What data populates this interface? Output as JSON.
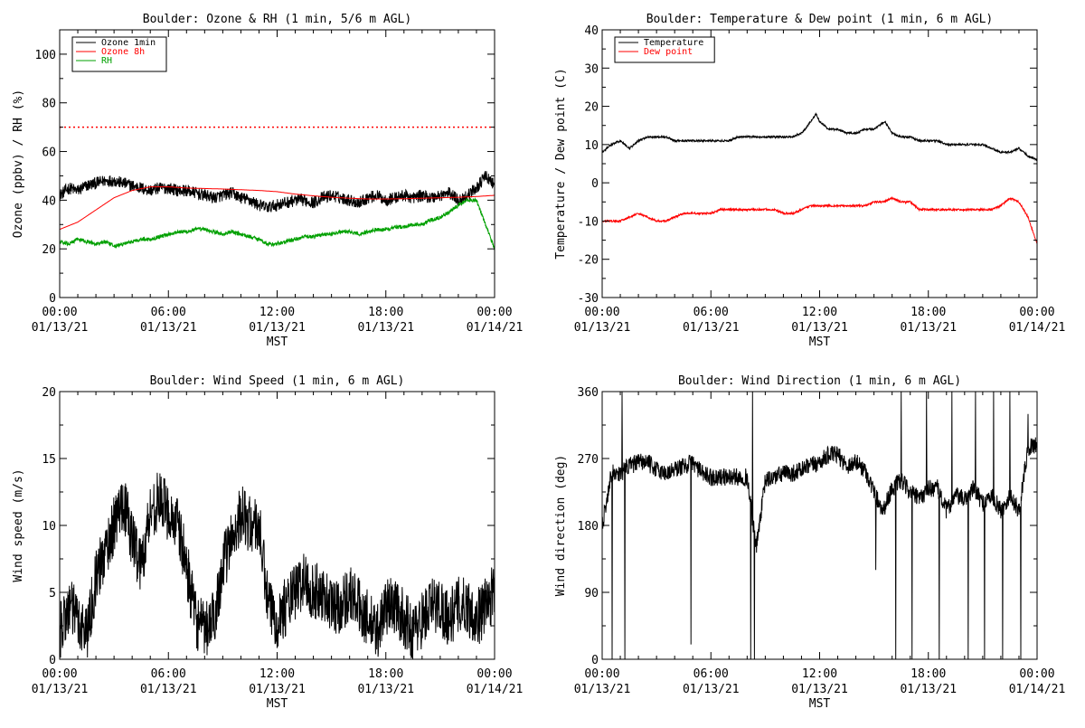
{
  "chart_data": [
    {
      "type": "line",
      "title": "Boulder: Ozone & RH (1 min, 5/6 m AGL)",
      "xlabel": "MST",
      "ylabel": "Ozone (ppbv) / RH (%)",
      "xlim": [
        0,
        24
      ],
      "ylim": [
        0,
        110
      ],
      "x_ticks": [
        {
          "value": 0,
          "time": "00:00",
          "date": "01/13/21"
        },
        {
          "value": 6,
          "time": "06:00",
          "date": "01/13/21"
        },
        {
          "value": 12,
          "time": "12:00",
          "date": "01/13/21"
        },
        {
          "value": 18,
          "time": "18:00",
          "date": "01/13/21"
        },
        {
          "value": 24,
          "time": "00:00",
          "date": "01/14/21"
        }
      ],
      "y_ticks": [
        0,
        20,
        40,
        60,
        80,
        100
      ],
      "grid": false,
      "legend": "top-left",
      "reference_line": {
        "y": 70,
        "color": "#ff0000",
        "style": "dotted"
      },
      "series": [
        {
          "name": "Ozone 1min",
          "color": "#000000",
          "noise": 2.5,
          "x": [
            0,
            0.5,
            1,
            1.5,
            2,
            2.5,
            3,
            3.5,
            4,
            4.5,
            5,
            5.5,
            6,
            6.5,
            7,
            7.5,
            8,
            8.5,
            9,
            9.5,
            10,
            10.5,
            11,
            11.5,
            12,
            12.5,
            13,
            13.5,
            14,
            14.5,
            15,
            15.5,
            16,
            16.5,
            17,
            17.5,
            18,
            18.5,
            19,
            19.5,
            20,
            20.5,
            21,
            21.5,
            22,
            22.5,
            23,
            23.5,
            24
          ],
          "y": [
            42,
            45,
            44,
            46,
            47,
            48,
            48,
            47,
            46,
            45,
            44,
            45,
            45,
            44,
            44,
            43,
            42,
            41,
            42,
            43,
            41,
            40,
            38,
            37,
            38,
            39,
            40,
            40,
            39,
            41,
            42,
            41,
            40,
            39,
            41,
            42,
            40,
            41,
            42,
            41,
            42,
            41,
            42,
            43,
            40,
            42,
            45,
            50,
            46
          ]
        },
        {
          "name": "Ozone 8h",
          "color": "#ff0000",
          "noise": 0,
          "x": [
            0,
            1,
            2,
            3,
            4,
            5,
            6,
            7,
            8,
            9,
            10,
            11,
            12,
            13,
            14,
            15,
            16,
            17,
            18,
            19,
            20,
            21,
            22,
            23,
            24
          ],
          "y": [
            28,
            31,
            36,
            41,
            44,
            45.5,
            45.5,
            45,
            44.8,
            44.6,
            44.3,
            44,
            43.5,
            42.5,
            41.8,
            41.2,
            40.8,
            40.5,
            40.5,
            40.6,
            40.8,
            41,
            41.2,
            41.5,
            42
          ]
        },
        {
          "name": "RH",
          "color": "#00a000",
          "noise": 0.8,
          "x": [
            0,
            0.5,
            1,
            1.5,
            2,
            2.5,
            3,
            3.5,
            4,
            4.5,
            5,
            5.5,
            6,
            6.5,
            7,
            7.5,
            8,
            8.5,
            9,
            9.5,
            10,
            10.5,
            11,
            11.5,
            12,
            12.5,
            13,
            13.5,
            14,
            14.5,
            15,
            15.5,
            16,
            16.5,
            17,
            17.5,
            18,
            18.5,
            19,
            19.5,
            20,
            20.5,
            21,
            21.5,
            22,
            22.5,
            23,
            23.5,
            24
          ],
          "y": [
            23,
            22,
            24,
            23,
            22,
            23,
            21,
            22,
            23,
            24,
            24,
            25,
            26,
            27,
            27,
            28,
            28,
            27,
            26,
            27,
            26,
            25,
            24,
            22,
            22,
            23,
            24,
            25,
            25,
            26,
            26,
            27,
            27,
            26,
            27,
            28,
            28,
            29,
            29,
            30,
            30,
            32,
            33,
            35,
            38,
            40,
            40,
            30,
            20
          ]
        }
      ]
    },
    {
      "type": "line",
      "title": "Boulder: Temperature & Dew point (1 min, 6 m AGL)",
      "xlabel": "MST",
      "ylabel": "Temperature / Dew point (C)",
      "xlim": [
        0,
        24
      ],
      "ylim": [
        -30,
        40
      ],
      "x_ticks": [
        {
          "value": 0,
          "time": "00:00",
          "date": "01/13/21"
        },
        {
          "value": 6,
          "time": "06:00",
          "date": "01/13/21"
        },
        {
          "value": 12,
          "time": "12:00",
          "date": "01/13/21"
        },
        {
          "value": 18,
          "time": "18:00",
          "date": "01/13/21"
        },
        {
          "value": 24,
          "time": "00:00",
          "date": "01/14/21"
        }
      ],
      "y_ticks": [
        -30,
        -20,
        -10,
        0,
        10,
        20,
        30,
        40
      ],
      "grid": false,
      "legend": "top-left",
      "series": [
        {
          "name": "Temperature",
          "color": "#000000",
          "noise": 0.25,
          "x": [
            0,
            0.5,
            1,
            1.5,
            2,
            2.5,
            3,
            3.5,
            4,
            4.5,
            5,
            5.5,
            6,
            6.5,
            7,
            7.5,
            8,
            8.5,
            9,
            9.5,
            10,
            10.5,
            11,
            11.2,
            11.5,
            11.8,
            12,
            12.5,
            13,
            13.5,
            14,
            14.5,
            15,
            15.3,
            15.6,
            16,
            16.5,
            17,
            17.5,
            18,
            18.5,
            19,
            19.5,
            20,
            20.5,
            21,
            21.5,
            22,
            22.5,
            23,
            23.5,
            24
          ],
          "y": [
            8,
            10,
            11,
            9,
            11,
            12,
            12,
            12,
            11,
            11,
            11,
            11,
            11,
            11,
            11,
            12,
            12,
            12,
            12,
            12,
            12,
            12,
            13,
            14,
            16,
            18,
            16,
            14,
            14,
            13,
            13,
            14,
            14,
            15,
            16,
            13,
            12,
            12,
            11,
            11,
            11,
            10,
            10,
            10,
            10,
            10,
            9,
            8,
            8,
            9,
            7,
            6
          ]
        },
        {
          "name": "Dew point",
          "color": "#ff0000",
          "noise": 0.25,
          "x": [
            0,
            0.5,
            1,
            1.5,
            2,
            2.5,
            3,
            3.5,
            4,
            4.5,
            5,
            5.5,
            6,
            6.5,
            7,
            7.5,
            8,
            8.5,
            9,
            9.5,
            10,
            10.5,
            11,
            11.5,
            12,
            12.5,
            13,
            13.5,
            14,
            14.5,
            15,
            15.5,
            16,
            16.5,
            17,
            17.5,
            18,
            18.5,
            19,
            19.5,
            20,
            20.5,
            21,
            21.5,
            22,
            22.5,
            23,
            23.5,
            24
          ],
          "y": [
            -10,
            -10,
            -10,
            -9,
            -8,
            -9,
            -10,
            -10,
            -9,
            -8,
            -8,
            -8,
            -8,
            -7,
            -7,
            -7,
            -7,
            -7,
            -7,
            -7,
            -8,
            -8,
            -7,
            -6,
            -6,
            -6,
            -6,
            -6,
            -6,
            -6,
            -5,
            -5,
            -4,
            -5,
            -5,
            -7,
            -7,
            -7,
            -7,
            -7,
            -7,
            -7,
            -7,
            -7,
            -6,
            -4,
            -5,
            -9,
            -16
          ]
        }
      ]
    },
    {
      "type": "line",
      "title": "Boulder: Wind Speed (1 min, 6 m AGL)",
      "xlabel": "MST",
      "ylabel": "Wind speed (m/s)",
      "xlim": [
        0,
        24
      ],
      "ylim": [
        0,
        20
      ],
      "x_ticks": [
        {
          "value": 0,
          "time": "00:00",
          "date": "01/13/21"
        },
        {
          "value": 6,
          "time": "06:00",
          "date": "01/13/21"
        },
        {
          "value": 12,
          "time": "12:00",
          "date": "01/13/21"
        },
        {
          "value": 18,
          "time": "18:00",
          "date": "01/13/21"
        },
        {
          "value": 24,
          "time": "00:00",
          "date": "01/14/21"
        }
      ],
      "y_ticks": [
        0,
        5,
        10,
        15,
        20
      ],
      "grid": false,
      "legend": "none",
      "series": [
        {
          "name": "",
          "color": "#000000",
          "noise": 2.2,
          "x": [
            0,
            0.5,
            1,
            1.5,
            2,
            2.5,
            3,
            3.5,
            4,
            4.5,
            5,
            5.5,
            6,
            6.5,
            7,
            7.5,
            8,
            8.5,
            9,
            9.5,
            10,
            10.5,
            11,
            11.5,
            12,
            12.5,
            13,
            13.5,
            14,
            14.5,
            15,
            15.5,
            16,
            16.5,
            17,
            17.5,
            18,
            18.5,
            19,
            19.5,
            20,
            20.5,
            21,
            21.5,
            22,
            22.5,
            23,
            23.5,
            24
          ],
          "y": [
            2,
            4,
            3,
            2,
            6,
            8,
            10,
            12,
            9,
            7,
            11,
            12,
            11,
            10,
            7,
            3,
            2,
            3,
            7,
            9,
            11,
            10,
            10,
            4,
            3,
            4,
            5,
            6,
            5,
            5,
            4,
            4,
            5,
            4,
            3,
            2,
            4,
            4,
            3,
            2,
            3,
            4,
            4,
            3,
            4,
            4,
            3,
            4,
            5
          ]
        }
      ]
    },
    {
      "type": "line",
      "title": "Boulder: Wind Direction (1 min, 6 m AGL)",
      "xlabel": "MST",
      "ylabel": "Wind direction (deg)",
      "xlim": [
        0,
        24
      ],
      "ylim": [
        0,
        360
      ],
      "x_ticks": [
        {
          "value": 0,
          "time": "00:00",
          "date": "01/13/21"
        },
        {
          "value": 6,
          "time": "06:00",
          "date": "01/13/21"
        },
        {
          "value": 12,
          "time": "12:00",
          "date": "01/13/21"
        },
        {
          "value": 18,
          "time": "18:00",
          "date": "01/13/21"
        },
        {
          "value": 24,
          "time": "00:00",
          "date": "01/14/21"
        }
      ],
      "y_ticks": [
        0,
        90,
        180,
        270,
        360
      ],
      "grid": false,
      "legend": "none",
      "series": [
        {
          "name": "",
          "color": "#000000",
          "noise": 12,
          "x": [
            0,
            0.5,
            1,
            1.5,
            2,
            2.5,
            3,
            3.5,
            4,
            4.5,
            5,
            5.5,
            6,
            6.5,
            7,
            7.5,
            8,
            8.5,
            9,
            9.5,
            10,
            10.5,
            11,
            11.5,
            12,
            12.5,
            13,
            13.5,
            14,
            14.5,
            15,
            15.5,
            16,
            16.5,
            17,
            17.5,
            18,
            18.5,
            19,
            19.5,
            20,
            20.5,
            21,
            21.5,
            22,
            22.5,
            23,
            23.5,
            24
          ],
          "y": [
            180,
            250,
            250,
            260,
            265,
            265,
            255,
            250,
            255,
            260,
            265,
            250,
            245,
            245,
            245,
            245,
            245,
            150,
            240,
            245,
            250,
            250,
            255,
            260,
            265,
            275,
            275,
            260,
            265,
            255,
            225,
            200,
            230,
            240,
            225,
            215,
            230,
            230,
            200,
            220,
            215,
            230,
            210,
            220,
            200,
            220,
            200,
            285,
            290
          ],
          "spikes": [
            [
              0.55,
              0
            ],
            [
              1.1,
              360
            ],
            [
              1.25,
              0
            ],
            [
              4.9,
              20
            ],
            [
              8.2,
              0
            ],
            [
              8.3,
              360
            ],
            [
              8.4,
              0
            ],
            [
              15.1,
              120
            ],
            [
              16.2,
              0
            ],
            [
              16.5,
              360
            ],
            [
              17.1,
              0
            ],
            [
              17.9,
              360
            ],
            [
              18.6,
              0
            ],
            [
              19.3,
              360
            ],
            [
              20.2,
              0
            ],
            [
              20.6,
              360
            ],
            [
              21.1,
              0
            ],
            [
              21.6,
              360
            ],
            [
              22.1,
              0
            ],
            [
              22.5,
              360
            ],
            [
              23.1,
              0
            ],
            [
              23.5,
              330
            ]
          ]
        }
      ]
    }
  ]
}
